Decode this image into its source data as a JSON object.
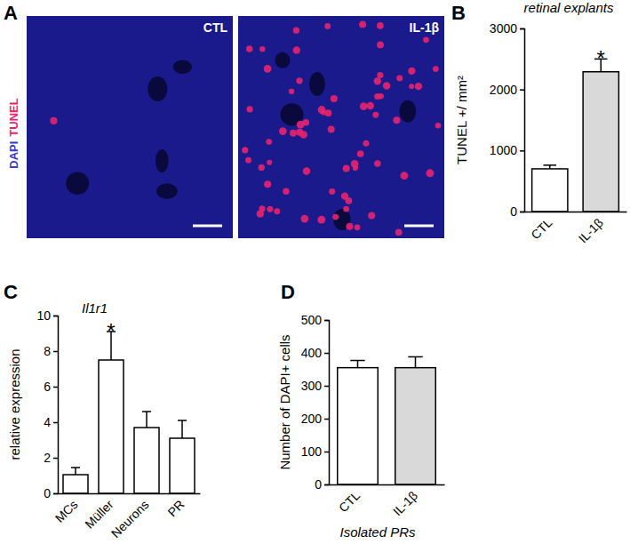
{
  "images": {
    "panel_label": "A",
    "channels": [
      {
        "text": "DAPI",
        "color": "#3a3ad0"
      },
      {
        "text": "TUNEL",
        "color": "#e8246e"
      }
    ],
    "panels": [
      "CTL",
      "IL-1β"
    ]
  },
  "chart_data": [
    {
      "type": "bar",
      "panel_label": "B",
      "title": "retinal explants",
      "y_label": "TUNEL +/ mm²",
      "categories": [
        "CTL",
        "IL-1β"
      ],
      "values": [
        700,
        2290
      ],
      "errors": [
        60,
        210
      ],
      "significance": [
        null,
        "*"
      ],
      "colors": [
        "#ffffff",
        "#d9d9d9"
      ],
      "ylim": [
        0,
        3000
      ],
      "yticks": [
        0,
        1000,
        2000,
        3000
      ]
    },
    {
      "type": "bar",
      "panel_label": "C",
      "title": "Il1r1",
      "y_label": "relative expression",
      "categories": [
        "MCs",
        "Müller",
        "Neurons",
        "PR"
      ],
      "values": [
        1.05,
        7.5,
        3.7,
        3.1
      ],
      "errors": [
        0.4,
        1.6,
        0.9,
        1.0
      ],
      "significance": [
        null,
        "*",
        null,
        null
      ],
      "color": "#ffffff",
      "ylim": [
        0,
        10
      ],
      "yticks": [
        0,
        2,
        4,
        6,
        8,
        10
      ]
    },
    {
      "type": "bar",
      "panel_label": "D",
      "y_label": "Number of DAPI+ cells",
      "x_label": "Isolated PRs",
      "categories": [
        "CTL",
        "IL-1β"
      ],
      "values": [
        355,
        355
      ],
      "errors": [
        22,
        33
      ],
      "colors": [
        "#ffffff",
        "#d9d9d9"
      ],
      "ylim": [
        0,
        500
      ],
      "yticks": [
        0,
        100,
        200,
        300,
        400,
        500
      ]
    }
  ]
}
